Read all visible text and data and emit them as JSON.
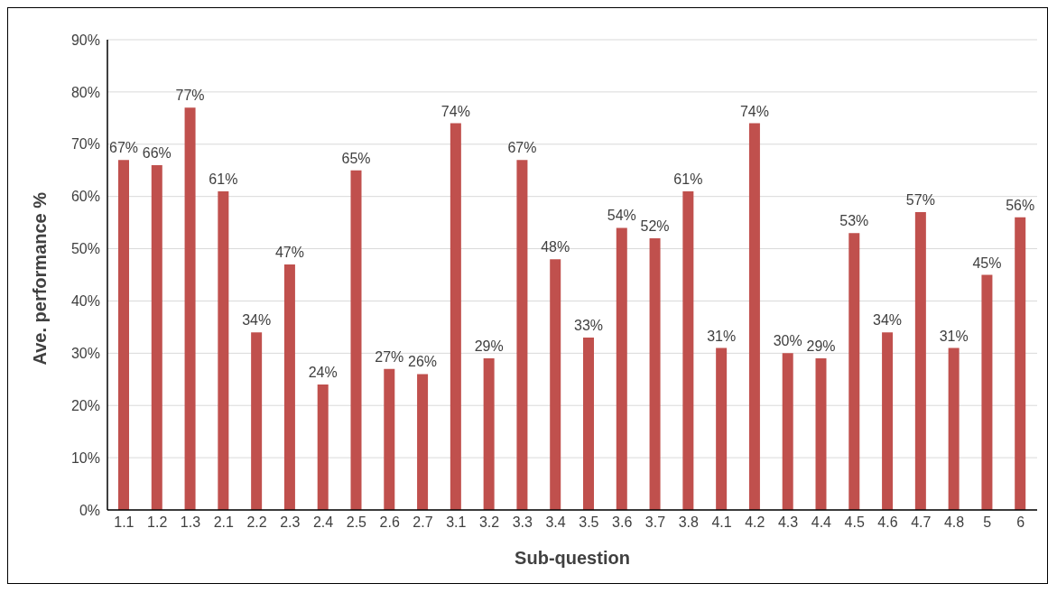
{
  "chart_data": {
    "type": "bar",
    "xlabel": "Sub-question",
    "ylabel": "Ave. performance %",
    "categories": [
      "1.1",
      "1.2",
      "1.3",
      "2.1",
      "2.2",
      "2.3",
      "2.4",
      "2.5",
      "2.6",
      "2.7",
      "3.1",
      "3.2",
      "3.3",
      "3.4",
      "3.5",
      "3.6",
      "3.7",
      "3.8",
      "4.1",
      "4.2",
      "4.3",
      "4.4",
      "4.5",
      "4.6",
      "4.7",
      "4.8",
      "5",
      "6"
    ],
    "values": [
      67,
      66,
      77,
      61,
      34,
      47,
      24,
      65,
      27,
      26,
      74,
      29,
      67,
      48,
      33,
      54,
      52,
      61,
      31,
      74,
      30,
      29,
      53,
      34,
      57,
      31,
      45,
      56
    ],
    "value_labels": [
      "67%",
      "66%",
      "77%",
      "61%",
      "34%",
      "47%",
      "24%",
      "65%",
      "27%",
      "26%",
      "74%",
      "29%",
      "67%",
      "48%",
      "33%",
      "54%",
      "52%",
      "61%",
      "31%",
      "74%",
      "30%",
      "29%",
      "53%",
      "34%",
      "57%",
      "31%",
      "45%",
      "56%"
    ],
    "color": "#c0504d",
    "ylim": [
      0,
      90
    ],
    "yticks": [
      {
        "value": 0,
        "label": "0%"
      },
      {
        "value": 10,
        "label": "10%"
      },
      {
        "value": 20,
        "label": "20%"
      },
      {
        "value": 30,
        "label": "30%"
      },
      {
        "value": 40,
        "label": "40%"
      },
      {
        "value": 50,
        "label": "50%"
      },
      {
        "value": 60,
        "label": "60%"
      },
      {
        "value": 70,
        "label": "70%"
      },
      {
        "value": 80,
        "label": "80%"
      },
      {
        "value": 90,
        "label": "90%"
      }
    ],
    "grid": "y",
    "legend": false
  }
}
